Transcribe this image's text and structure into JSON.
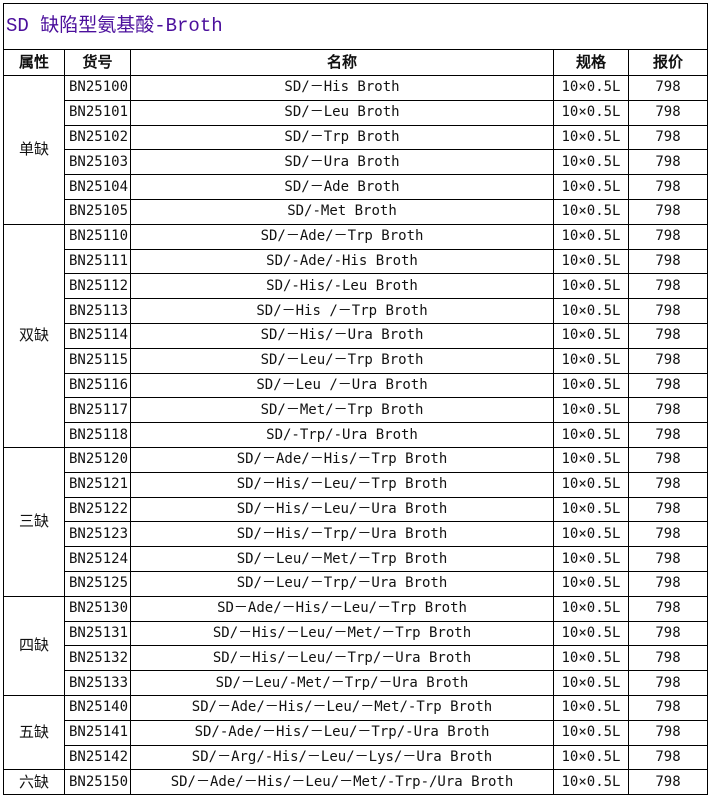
{
  "title": "SD 缺陷型氨基酸-Broth",
  "headers": [
    "属性",
    "货号",
    "名称",
    "规格",
    "报价"
  ],
  "groups": [
    {
      "label": "单缺",
      "rows": [
        [
          "BN25100",
          "SD/－His Broth",
          "10×0.5L",
          "798"
        ],
        [
          "BN25101",
          "SD/－Leu Broth",
          "10×0.5L",
          "798"
        ],
        [
          "BN25102",
          "SD/－Trp Broth",
          "10×0.5L",
          "798"
        ],
        [
          "BN25103",
          "SD/－Ura Broth",
          "10×0.5L",
          "798"
        ],
        [
          "BN25104",
          "SD/－Ade Broth",
          "10×0.5L",
          "798"
        ],
        [
          "BN25105",
          "SD/-Met Broth",
          "10×0.5L",
          "798"
        ]
      ]
    },
    {
      "label": "双缺",
      "rows": [
        [
          "BN25110",
          "SD/－Ade/－Trp Broth",
          "10×0.5L",
          "798"
        ],
        [
          "BN25111",
          "SD/-Ade/-His Broth",
          "10×0.5L",
          "798"
        ],
        [
          "BN25112",
          "SD/-His/-Leu Broth",
          "10×0.5L",
          "798"
        ],
        [
          "BN25113",
          "SD/－His /－Trp Broth",
          "10×0.5L",
          "798"
        ],
        [
          "BN25114",
          "SD/－His/－Ura Broth",
          "10×0.5L",
          "798"
        ],
        [
          "BN25115",
          "SD/－Leu/－Trp Broth",
          "10×0.5L",
          "798"
        ],
        [
          "BN25116",
          "SD/－Leu /－Ura Broth",
          "10×0.5L",
          "798"
        ],
        [
          "BN25117",
          "SD/－Met/－Trp Broth",
          "10×0.5L",
          "798"
        ],
        [
          "BN25118",
          "SD/-Trp/-Ura Broth",
          "10×0.5L",
          "798"
        ]
      ]
    },
    {
      "label": "三缺",
      "rows": [
        [
          "BN25120",
          "SD/－Ade/－His/－Trp Broth",
          "10×0.5L",
          "798"
        ],
        [
          "BN25121",
          "SD/－His/－Leu/－Trp Broth",
          "10×0.5L",
          "798"
        ],
        [
          "BN25122",
          "SD/－His/－Leu/－Ura Broth",
          "10×0.5L",
          "798"
        ],
        [
          "BN25123",
          "SD/－His/－Trp/－Ura Broth",
          "10×0.5L",
          "798"
        ],
        [
          "BN25124",
          "SD/－Leu/－Met/－Trp Broth",
          "10×0.5L",
          "798"
        ],
        [
          "BN25125",
          "SD/－Leu/－Trp/－Ura Broth",
          "10×0.5L",
          "798"
        ]
      ]
    },
    {
      "label": "四缺",
      "rows": [
        [
          "BN25130",
          "SD－Ade/－His/－Leu/－Trp Broth",
          "10×0.5L",
          "798"
        ],
        [
          "BN25131",
          "SD/－His/－Leu/－Met/－Trp Broth",
          "10×0.5L",
          "798"
        ],
        [
          "BN25132",
          "SD/－His/－Leu/－Trp/－Ura Broth",
          "10×0.5L",
          "798"
        ],
        [
          "BN25133",
          "SD/－Leu/-Met/－Trp/－Ura Broth",
          "10×0.5L",
          "798"
        ]
      ]
    },
    {
      "label": "五缺",
      "rows": [
        [
          "BN25140",
          "SD/－Ade/－His/－Leu/－Met/-Trp Broth",
          "10×0.5L",
          "798"
        ],
        [
          "BN25141",
          "SD/-Ade/－His/－Leu/－Trp/-Ura Broth",
          "10×0.5L",
          "798"
        ],
        [
          "BN25142",
          "SD/－Arg/-His/－Leu/－Lys/－Ura Broth",
          "10×0.5L",
          "798"
        ]
      ]
    },
    {
      "label": "六缺",
      "rows": [
        [
          "BN25150",
          "SD/－Ade/－His/－Leu/－Met/-Trp-/Ura Broth",
          "10×0.5L",
          "798"
        ]
      ]
    }
  ]
}
